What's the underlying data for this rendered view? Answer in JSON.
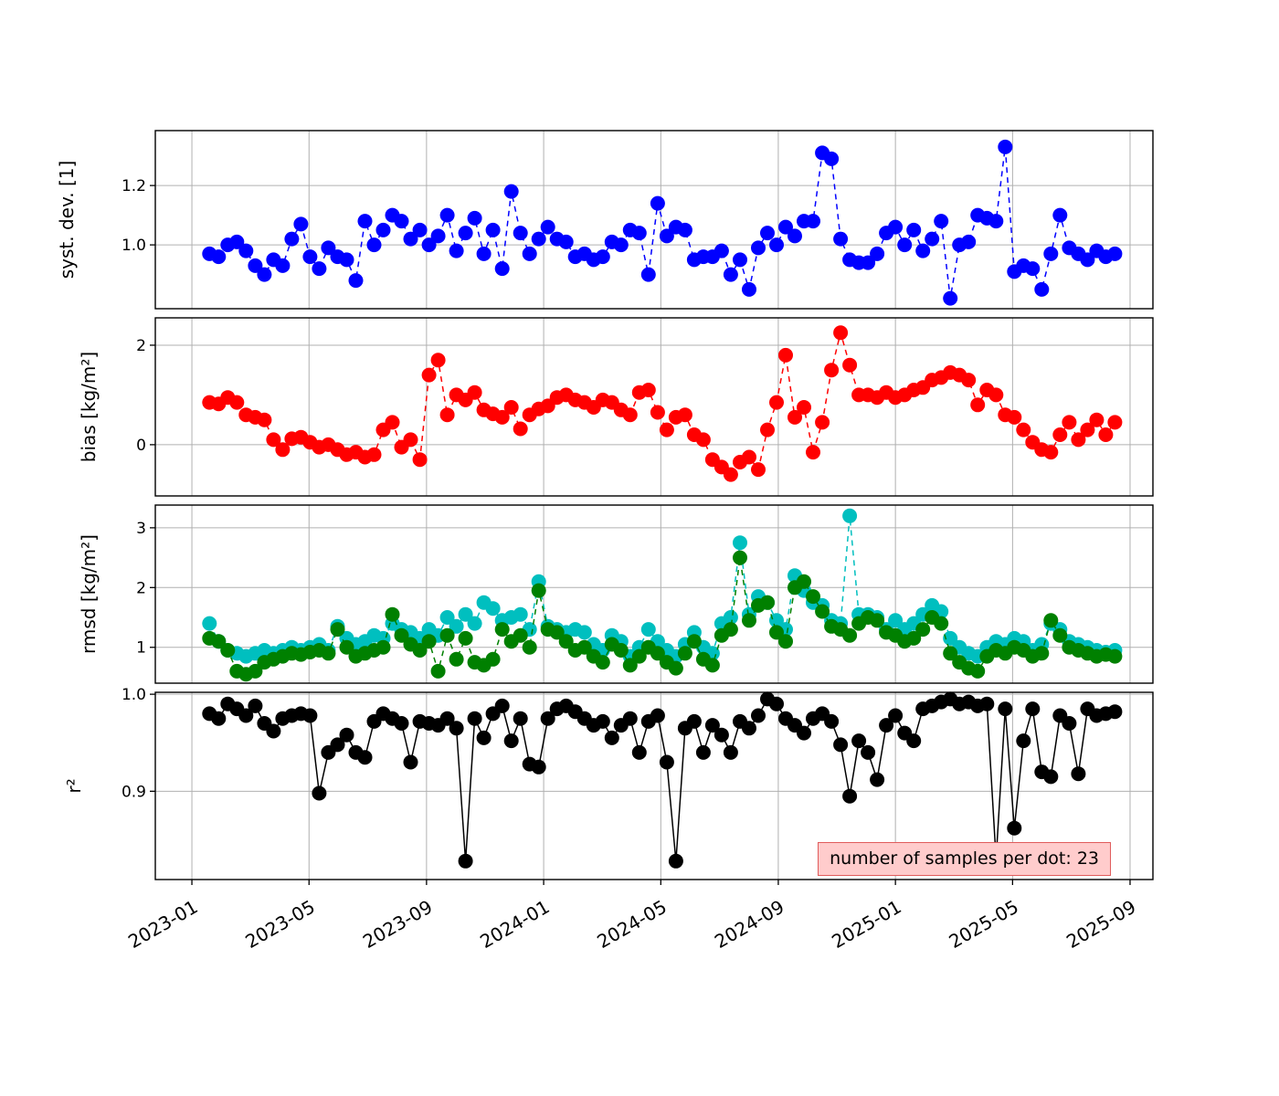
{
  "figure": {
    "background": "#ffffff",
    "grid_color": "#b0b0b0",
    "spine_color": "#000000",
    "annotation": {
      "text": "number of samples per dot: 23",
      "bg_color": "#ffcccc",
      "border_color": "#e05c5c"
    },
    "x_axis": {
      "range": [
        2022.896,
        2025.732
      ],
      "tick_values": [
        2023.0,
        2023.333,
        2023.667,
        2024.0,
        2024.333,
        2024.667,
        2025.0,
        2025.333,
        2025.667
      ],
      "tick_labels": [
        "2023-01",
        "2023-05",
        "2023-09",
        "2024-01",
        "2024-05",
        "2024-09",
        "2025-01",
        "2025-05",
        "2025-09"
      ]
    }
  },
  "x": [
    2023.05,
    2023.076,
    2023.102,
    2023.128,
    2023.154,
    2023.18,
    2023.206,
    2023.232,
    2023.258,
    2023.284,
    2023.31,
    2023.336,
    2023.362,
    2023.388,
    2023.414,
    2023.44,
    2023.466,
    2023.492,
    2023.518,
    2023.544,
    2023.57,
    2023.596,
    2023.622,
    2023.648,
    2023.674,
    2023.7,
    2023.726,
    2023.752,
    2023.778,
    2023.804,
    2023.83,
    2023.856,
    2023.882,
    2023.908,
    2023.934,
    2023.96,
    2023.986,
    2024.012,
    2024.038,
    2024.064,
    2024.09,
    2024.116,
    2024.142,
    2024.168,
    2024.194,
    2024.22,
    2024.246,
    2024.272,
    2024.298,
    2024.324,
    2024.35,
    2024.376,
    2024.402,
    2024.428,
    2024.454,
    2024.48,
    2024.506,
    2024.532,
    2024.558,
    2024.584,
    2024.61,
    2024.636,
    2024.662,
    2024.688,
    2024.714,
    2024.74,
    2024.766,
    2024.792,
    2024.818,
    2024.844,
    2024.87,
    2024.896,
    2024.922,
    2024.948,
    2024.974,
    2025.0,
    2025.026,
    2025.052,
    2025.078,
    2025.104,
    2025.13,
    2025.156,
    2025.182,
    2025.208,
    2025.234,
    2025.26,
    2025.286,
    2025.312,
    2025.338,
    2025.364,
    2025.39,
    2025.416,
    2025.442,
    2025.468,
    2025.494,
    2025.52,
    2025.546,
    2025.572,
    2025.598,
    2025.624
  ],
  "chart_data": [
    {
      "type": "scatter",
      "name": "syst-dev",
      "ylabel": "syst. dev. [1]",
      "ylim": [
        0.785,
        1.385
      ],
      "ytick_values": [
        1.0,
        1.2
      ],
      "ytick_labels": [
        "1.0",
        "1.2"
      ],
      "series": [
        {
          "name": "syst. dev.",
          "color": "#0000ff",
          "line": "dashed",
          "values": [
            0.97,
            0.96,
            1.0,
            1.01,
            0.98,
            0.93,
            0.9,
            0.95,
            0.93,
            1.02,
            1.07,
            0.96,
            0.92,
            0.99,
            0.96,
            0.95,
            0.88,
            1.08,
            1.0,
            1.05,
            1.1,
            1.08,
            1.02,
            1.05,
            1.0,
            1.03,
            1.1,
            0.98,
            1.04,
            1.09,
            0.97,
            1.05,
            0.92,
            1.18,
            1.04,
            0.97,
            1.02,
            1.06,
            1.02,
            1.01,
            0.96,
            0.97,
            0.95,
            0.96,
            1.01,
            1.0,
            1.05,
            1.04,
            0.9,
            1.14,
            1.03,
            1.06,
            1.05,
            0.95,
            0.96,
            0.96,
            0.98,
            0.9,
            0.95,
            0.85,
            0.99,
            1.04,
            1.0,
            1.06,
            1.03,
            1.08,
            1.08,
            1.31,
            1.29,
            1.02,
            0.95,
            0.94,
            0.94,
            0.97,
            1.04,
            1.06,
            1.0,
            1.05,
            0.98,
            1.02,
            1.08,
            0.82,
            1.0,
            1.01,
            1.1,
            1.09,
            1.08,
            1.33,
            0.91,
            0.93,
            0.92,
            0.85,
            0.97,
            1.1,
            0.99,
            0.97,
            0.95,
            0.98,
            0.96,
            0.97
          ]
        }
      ]
    },
    {
      "type": "scatter",
      "name": "bias",
      "ylabel": "bias [kg/m²]",
      "ylim": [
        -1.03,
        2.55
      ],
      "ytick_values": [
        0,
        2
      ],
      "ytick_labels": [
        "0",
        "2"
      ],
      "series": [
        {
          "name": "bias",
          "color": "#ff0000",
          "line": "dashed",
          "values": [
            0.85,
            0.82,
            0.95,
            0.85,
            0.6,
            0.55,
            0.5,
            0.1,
            -0.1,
            0.12,
            0.15,
            0.05,
            -0.05,
            0.0,
            -0.1,
            -0.2,
            -0.15,
            -0.25,
            -0.2,
            0.3,
            0.45,
            -0.05,
            0.1,
            -0.3,
            1.4,
            1.7,
            0.6,
            1.0,
            0.9,
            1.05,
            0.7,
            0.62,
            0.55,
            0.75,
            0.32,
            0.6,
            0.72,
            0.78,
            0.95,
            1.0,
            0.9,
            0.85,
            0.75,
            0.9,
            0.85,
            0.7,
            0.6,
            1.05,
            1.1,
            0.65,
            0.3,
            0.55,
            0.6,
            0.2,
            0.1,
            -0.3,
            -0.45,
            -0.6,
            -0.35,
            -0.25,
            -0.5,
            0.3,
            0.85,
            1.8,
            0.55,
            0.75,
            -0.15,
            0.45,
            1.5,
            2.25,
            1.6,
            1.0,
            1.0,
            0.95,
            1.05,
            0.95,
            1.0,
            1.1,
            1.15,
            1.3,
            1.35,
            1.45,
            1.4,
            1.3,
            0.8,
            1.1,
            1.0,
            0.6,
            0.55,
            0.3,
            0.05,
            -0.1,
            -0.15,
            0.2,
            0.45,
            0.1,
            0.3,
            0.5,
            0.2,
            0.45
          ]
        }
      ]
    },
    {
      "type": "scatter",
      "name": "rmsd",
      "ylabel": "rmsd [kg/m²]",
      "ylim": [
        0.4,
        3.38
      ],
      "ytick_values": [
        1,
        2,
        3
      ],
      "ytick_labels": [
        "1",
        "2",
        "3"
      ],
      "series": [
        {
          "name": "rmsd cyan",
          "color": "#00bfbf",
          "line": "dashed",
          "values": [
            1.4,
            1.1,
            0.95,
            0.9,
            0.85,
            0.9,
            0.95,
            0.9,
            0.95,
            1.0,
            0.95,
            1.0,
            1.05,
            0.95,
            1.35,
            1.15,
            1.05,
            1.1,
            1.2,
            1.15,
            1.4,
            1.3,
            1.25,
            1.15,
            1.3,
            1.2,
            1.5,
            1.35,
            1.55,
            1.4,
            1.75,
            1.65,
            1.45,
            1.5,
            1.55,
            1.3,
            2.1,
            1.35,
            1.3,
            1.25,
            1.3,
            1.25,
            1.05,
            0.95,
            1.2,
            1.1,
            0.85,
            1.0,
            1.3,
            1.1,
            0.95,
            0.85,
            1.05,
            1.25,
            1.0,
            0.9,
            1.4,
            1.5,
            2.75,
            1.55,
            1.85,
            1.75,
            1.45,
            1.3,
            2.2,
            1.95,
            1.75,
            1.7,
            1.45,
            1.4,
            3.2,
            1.55,
            1.55,
            1.5,
            1.3,
            1.45,
            1.3,
            1.4,
            1.55,
            1.7,
            1.6,
            1.15,
            1.0,
            0.9,
            0.85,
            1.0,
            1.1,
            1.05,
            1.15,
            1.1,
            0.95,
            1.05,
            1.4,
            1.3,
            1.1,
            1.05,
            1.0,
            0.95,
            0.92,
            0.95
          ]
        },
        {
          "name": "rmsd green",
          "color": "#008000",
          "line": "dashed",
          "values": [
            1.15,
            1.1,
            0.95,
            0.6,
            0.55,
            0.6,
            0.75,
            0.8,
            0.85,
            0.9,
            0.88,
            0.92,
            0.95,
            0.9,
            1.3,
            1.0,
            0.85,
            0.9,
            0.95,
            1.0,
            1.55,
            1.2,
            1.05,
            0.95,
            1.1,
            0.6,
            1.2,
            0.8,
            1.15,
            0.75,
            0.7,
            0.8,
            1.3,
            1.1,
            1.2,
            1.0,
            1.95,
            1.3,
            1.25,
            1.1,
            0.95,
            1.0,
            0.85,
            0.75,
            1.05,
            0.95,
            0.7,
            0.85,
            1.0,
            0.9,
            0.75,
            0.65,
            0.9,
            1.1,
            0.8,
            0.7,
            1.2,
            1.3,
            2.5,
            1.45,
            1.7,
            1.75,
            1.25,
            1.1,
            2.0,
            2.1,
            1.85,
            1.6,
            1.35,
            1.3,
            1.2,
            1.4,
            1.5,
            1.45,
            1.25,
            1.2,
            1.1,
            1.15,
            1.3,
            1.5,
            1.4,
            0.9,
            0.75,
            0.65,
            0.6,
            0.85,
            0.95,
            0.9,
            1.0,
            0.95,
            0.85,
            0.9,
            1.45,
            1.2,
            1.0,
            0.95,
            0.9,
            0.85,
            0.88,
            0.85
          ]
        }
      ]
    },
    {
      "type": "scatter",
      "name": "r2",
      "ylabel": "r²",
      "ylim": [
        0.809,
        1.002
      ],
      "ytick_values": [
        0.9,
        1.0
      ],
      "ytick_labels": [
        "0.9",
        "1.0"
      ],
      "series": [
        {
          "name": "r²",
          "color": "#000000",
          "line": "solid",
          "values": [
            0.98,
            0.975,
            0.99,
            0.985,
            0.978,
            0.988,
            0.97,
            0.962,
            0.975,
            0.978,
            0.98,
            0.978,
            0.898,
            0.94,
            0.948,
            0.958,
            0.94,
            0.935,
            0.972,
            0.98,
            0.975,
            0.97,
            0.93,
            0.972,
            0.97,
            0.968,
            0.975,
            0.965,
            0.828,
            0.975,
            0.955,
            0.98,
            0.988,
            0.952,
            0.975,
            0.928,
            0.925,
            0.975,
            0.985,
            0.988,
            0.982,
            0.975,
            0.968,
            0.972,
            0.955,
            0.968,
            0.975,
            0.94,
            0.972,
            0.978,
            0.93,
            0.828,
            0.965,
            0.972,
            0.94,
            0.968,
            0.958,
            0.94,
            0.972,
            0.965,
            0.978,
            0.995,
            0.99,
            0.975,
            0.968,
            0.96,
            0.975,
            0.98,
            0.972,
            0.948,
            0.895,
            0.952,
            0.94,
            0.912,
            0.968,
            0.978,
            0.96,
            0.952,
            0.985,
            0.988,
            0.992,
            0.995,
            0.99,
            0.992,
            0.988,
            0.99,
            0.83,
            0.985,
            0.862,
            0.952,
            0.985,
            0.92,
            0.915,
            0.978,
            0.97,
            0.918,
            0.985,
            0.978,
            0.98,
            0.982
          ]
        }
      ]
    }
  ]
}
